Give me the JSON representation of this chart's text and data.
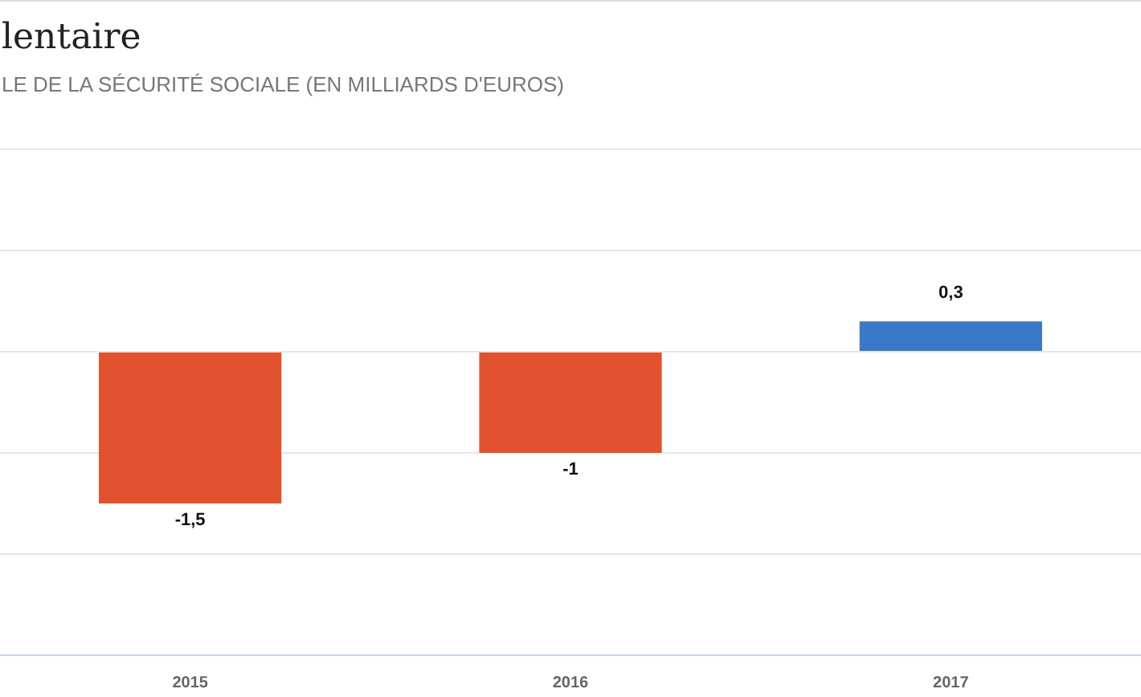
{
  "chart_data": {
    "type": "bar",
    "title": "lentaire",
    "subtitle": "LE DE LA SÉCURITÉ SOCIALE (EN MILLIARDS D'EUROS)",
    "categories": [
      "2015",
      "2016",
      "2017"
    ],
    "values": [
      -1.5,
      -1,
      0.3
    ],
    "colors": [
      "#e2522e",
      "#e2522e",
      "#3a78c9"
    ],
    "value_labels": [
      "-1,5",
      "-1",
      "0,3"
    ],
    "ylim": [
      -3,
      2
    ],
    "yticks": [
      {
        "value": -2,
        "label": null
      },
      {
        "value": -1,
        "label": null
      },
      {
        "value": 0,
        "label": null
      },
      {
        "value": 1,
        "label": null
      },
      {
        "value": 2,
        "label": null
      }
    ],
    "grid": "y",
    "tick_labels": "x",
    "legend": false
  }
}
